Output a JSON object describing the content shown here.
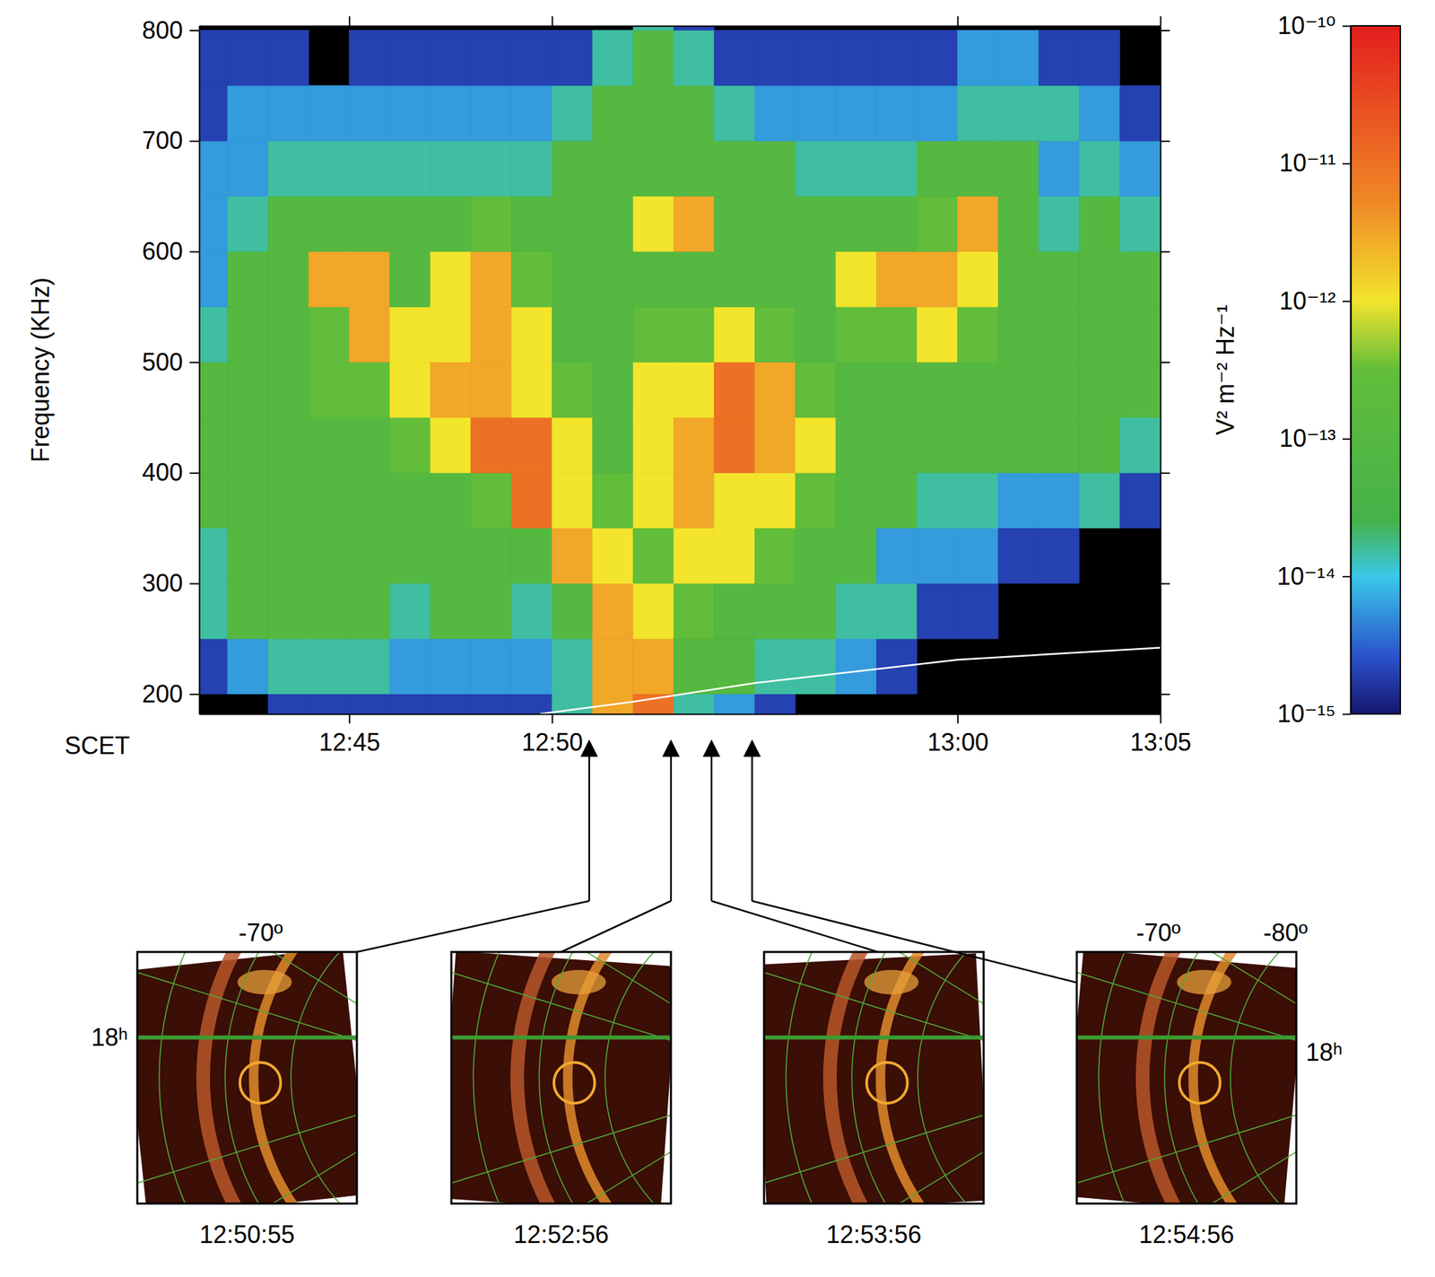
{
  "chart_data": {
    "type": "heatmap",
    "x_label": "SCET",
    "y_label": "Frequency (KHz)",
    "xlim": [
      761.3,
      785
    ],
    "xticks": [
      {
        "value": 765,
        "label": "12:45"
      },
      {
        "value": 770,
        "label": "12:50"
      },
      {
        "value": 780,
        "label": "13:00"
      },
      {
        "value": 785,
        "label": "13:05"
      }
    ],
    "ylim": [
      182,
      804
    ],
    "yticks": [
      200,
      300,
      400,
      500,
      600,
      700,
      800
    ],
    "x_bins": [
      761,
      762,
      763,
      764,
      765,
      766,
      767,
      768,
      769,
      770,
      771,
      772,
      773,
      774,
      775,
      776,
      777,
      778,
      779,
      780,
      781,
      782,
      783,
      784,
      785
    ],
    "y_bins": [
      180,
      200,
      250,
      300,
      350,
      400,
      450,
      500,
      550,
      600,
      650,
      700,
      750,
      800,
      805
    ],
    "cells": [
      [
        null,
        2e-15,
        1.5e-14,
        1.5e-14,
        1e-13,
        1e-13,
        1e-13,
        1.5e-14,
        6e-15,
        6e-15,
        6e-15,
        2e-15,
        2e-15,
        null
      ],
      [
        null,
        6e-15,
        1e-13,
        1e-13,
        1e-13,
        1e-13,
        1e-13,
        1e-13,
        1e-13,
        1.5e-14,
        6e-15,
        6e-15,
        2e-15,
        null
      ],
      [
        2e-15,
        1.5e-14,
        1e-13,
        1e-13,
        1e-13,
        1e-13,
        1e-13,
        1e-13,
        1e-13,
        1e-13,
        1.5e-14,
        6e-15,
        2e-15,
        null
      ],
      [
        2e-15,
        1.5e-14,
        1e-13,
        1e-13,
        1e-13,
        1e-13,
        3e-13,
        3e-13,
        3e-12,
        1e-13,
        1.5e-14,
        6e-15,
        null,
        null
      ],
      [
        2e-15,
        1.5e-14,
        1e-13,
        1e-13,
        1e-13,
        1e-13,
        3e-13,
        3e-12,
        3e-12,
        1e-13,
        1.5e-14,
        6e-15,
        2e-15,
        null
      ],
      [
        2e-15,
        6e-15,
        1.5e-14,
        1e-13,
        1e-13,
        3e-13,
        1e-12,
        1e-12,
        1e-13,
        1e-13,
        1.5e-14,
        6e-15,
        2e-15,
        null
      ],
      [
        2e-15,
        6e-15,
        1e-13,
        1e-13,
        1e-13,
        1e-12,
        3e-12,
        1e-12,
        1e-12,
        1e-13,
        1.5e-14,
        6e-15,
        2e-15,
        null
      ],
      [
        2e-15,
        6e-15,
        1e-13,
        1e-13,
        3e-13,
        1e-11,
        3e-12,
        3e-12,
        3e-12,
        3e-13,
        1.5e-14,
        6e-15,
        2e-15,
        null
      ],
      [
        2e-15,
        6e-15,
        1.5e-14,
        1e-13,
        1e-11,
        1e-11,
        1e-12,
        1e-12,
        3e-13,
        1e-13,
        1.5e-14,
        6e-15,
        2e-15,
        null
      ],
      [
        1.5e-14,
        1.5e-14,
        1e-13,
        3e-12,
        1e-12,
        1e-12,
        3e-13,
        1e-13,
        1e-13,
        1e-13,
        1e-13,
        1.5e-14,
        2e-15,
        null
      ],
      [
        3e-12,
        3e-12,
        3e-12,
        1e-12,
        3e-13,
        1e-13,
        1e-13,
        1e-13,
        1e-13,
        1e-13,
        1e-13,
        1e-13,
        1.5e-14,
        null
      ],
      [
        1e-11,
        3e-12,
        1e-12,
        3e-13,
        1e-12,
        1e-12,
        1e-12,
        3e-13,
        1e-13,
        1e-12,
        1e-13,
        1e-13,
        1e-13,
        1.5e-14
      ],
      [
        1.5e-14,
        1e-13,
        3e-13,
        1e-12,
        3e-12,
        3e-12,
        1e-12,
        3e-13,
        1e-13,
        3e-12,
        1e-13,
        1e-13,
        1.5e-14,
        2e-15
      ],
      [
        6e-15,
        1e-13,
        1e-13,
        1e-12,
        1e-12,
        1e-11,
        1e-11,
        1e-12,
        1e-13,
        1e-13,
        1e-13,
        1.5e-14,
        2e-15,
        null
      ],
      [
        2e-15,
        1.5e-14,
        1e-13,
        3e-13,
        1e-12,
        3e-12,
        3e-12,
        3e-13,
        1e-13,
        1e-13,
        1e-13,
        6e-15,
        2e-15,
        null
      ],
      [
        null,
        1.5e-14,
        1e-13,
        1e-13,
        3e-13,
        1e-12,
        3e-13,
        1e-13,
        1e-13,
        1e-13,
        1.5e-14,
        6e-15,
        2e-15,
        null
      ],
      [
        null,
        6e-15,
        1.5e-14,
        1e-13,
        1e-13,
        1e-13,
        1e-13,
        3e-13,
        1e-12,
        1e-13,
        1.5e-14,
        6e-15,
        2e-15,
        null
      ],
      [
        null,
        2e-15,
        1.5e-14,
        6e-15,
        1e-13,
        1e-13,
        1e-13,
        3e-13,
        3e-12,
        1e-13,
        1.5e-14,
        6e-15,
        2e-15,
        null
      ],
      [
        null,
        null,
        2e-15,
        6e-15,
        1.5e-14,
        1e-13,
        1e-13,
        1e-12,
        3e-12,
        3e-13,
        1e-13,
        6e-15,
        2e-15,
        null
      ],
      [
        null,
        null,
        2e-15,
        6e-15,
        1.5e-14,
        1e-13,
        1e-13,
        3e-13,
        1e-12,
        3e-12,
        1e-13,
        1.5e-14,
        6e-15,
        null
      ],
      [
        null,
        null,
        null,
        2e-15,
        6e-15,
        1e-13,
        1e-13,
        1e-13,
        1e-13,
        1e-13,
        1e-13,
        1.5e-14,
        6e-15,
        null
      ],
      [
        null,
        null,
        null,
        2e-15,
        6e-15,
        1e-13,
        1e-13,
        1e-13,
        1e-13,
        1.5e-14,
        6e-15,
        1.5e-14,
        2e-15,
        null
      ],
      [
        null,
        null,
        null,
        null,
        1.5e-14,
        1e-13,
        1e-13,
        1e-13,
        1e-13,
        1e-13,
        1.5e-14,
        6e-15,
        2e-15,
        null
      ],
      [
        null,
        null,
        null,
        null,
        2e-15,
        1.5e-14,
        1e-13,
        1e-13,
        1e-13,
        1.5e-14,
        6e-15,
        2e-15,
        null,
        null
      ]
    ],
    "colorbar": {
      "label": "V² m⁻² Hz⁻¹",
      "lim": [
        1e-15,
        1e-10
      ],
      "log": true,
      "ticks": [
        {
          "value": 1e-10,
          "label": "10⁻¹⁰"
        },
        {
          "value": 1e-11,
          "label": "10⁻¹¹"
        },
        {
          "value": 1e-12,
          "label": "10⁻¹²"
        },
        {
          "value": 1e-13,
          "label": "10⁻¹³"
        },
        {
          "value": 1e-14,
          "label": "10⁻¹⁴"
        },
        {
          "value": 1e-15,
          "label": "10⁻¹⁵"
        }
      ]
    },
    "series": [
      {
        "type": "line",
        "color": "#ffffff",
        "x": [
          769.7,
          772,
          775,
          780,
          785
        ],
        "values": [
          182,
          193,
          210,
          231,
          242
        ]
      }
    ],
    "panels": [
      {
        "time": "12:50:55",
        "x": 770.917,
        "labels": [
          "-70º",
          "18ʰ"
        ]
      },
      {
        "time": "12:52:56",
        "x": 772.933,
        "labels": []
      },
      {
        "time": "12:53:56",
        "x": 773.933,
        "labels": []
      },
      {
        "time": "12:54:56",
        "x": 774.933,
        "labels": [
          "-70º",
          "-80º",
          "18ʰ"
        ]
      }
    ]
  }
}
